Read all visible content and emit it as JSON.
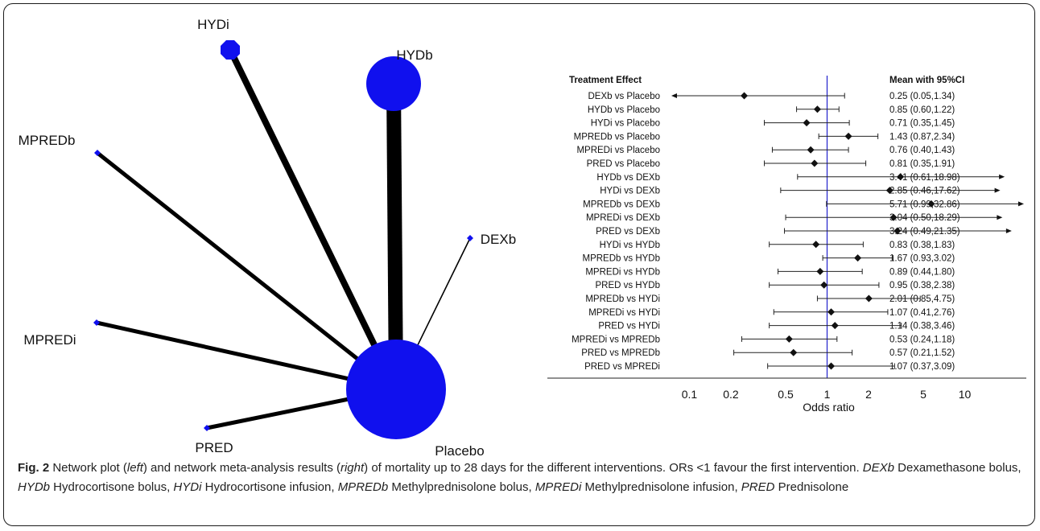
{
  "chart_data": [
    {
      "type": "network",
      "nodes": [
        {
          "id": "HYDi",
          "label": "HYDi",
          "size": "medium"
        },
        {
          "id": "HYDb",
          "label": "HYDb",
          "size": "large"
        },
        {
          "id": "MPREDb",
          "label": "MPREDb",
          "size": "small"
        },
        {
          "id": "DEXb",
          "label": "DEXb",
          "size": "small"
        },
        {
          "id": "MPREDi",
          "label": "MPREDi",
          "size": "small"
        },
        {
          "id": "PRED",
          "label": "PRED",
          "size": "small"
        },
        {
          "id": "Placebo",
          "label": "Placebo",
          "size": "very large"
        }
      ],
      "edges": [
        {
          "from": "HYDi",
          "to": "Placebo",
          "weight": "thick"
        },
        {
          "from": "HYDb",
          "to": "Placebo",
          "weight": "very thick"
        },
        {
          "from": "MPREDb",
          "to": "Placebo",
          "weight": "medium"
        },
        {
          "from": "DEXb",
          "to": "Placebo",
          "weight": "thin"
        },
        {
          "from": "MPREDi",
          "to": "Placebo",
          "weight": "medium"
        },
        {
          "from": "PRED",
          "to": "Placebo",
          "weight": "medium"
        }
      ]
    },
    {
      "type": "forest",
      "col_left_header": "Treatment Effect",
      "col_right_header": "Mean with 95%CI",
      "xlabel": "Odds ratio",
      "xscale": "log",
      "xlim": [
        0.07,
        28
      ],
      "reference_line": 1,
      "ticks": [
        {
          "value": 0.1,
          "label": "0.1"
        },
        {
          "value": 0.2,
          "label": "0.2"
        },
        {
          "value": 0.5,
          "label": "0.5"
        },
        {
          "value": 1,
          "label": "1"
        },
        {
          "value": 2,
          "label": "2"
        },
        {
          "value": 5,
          "label": "5"
        },
        {
          "value": 10,
          "label": "10"
        }
      ],
      "rows": [
        {
          "label": "DEXb vs Placebo",
          "mean": 0.25,
          "lo": 0.05,
          "hi": 1.34,
          "text": "0.25 (0.05,1.34)",
          "left_arrow": true,
          "right_arrow": false
        },
        {
          "label": "HYDb vs Placebo",
          "mean": 0.85,
          "lo": 0.6,
          "hi": 1.22,
          "text": "0.85 (0.60,1.22)",
          "left_arrow": false,
          "right_arrow": false
        },
        {
          "label": "HYDi vs Placebo",
          "mean": 0.71,
          "lo": 0.35,
          "hi": 1.45,
          "text": "0.71 (0.35,1.45)",
          "left_arrow": false,
          "right_arrow": false
        },
        {
          "label": "MPREDb vs Placebo",
          "mean": 1.43,
          "lo": 0.87,
          "hi": 2.34,
          "text": "1.43 (0.87,2.34)",
          "left_arrow": false,
          "right_arrow": false
        },
        {
          "label": "MPREDi vs Placebo",
          "mean": 0.76,
          "lo": 0.4,
          "hi": 1.43,
          "text": "0.76 (0.40,1.43)",
          "left_arrow": false,
          "right_arrow": false
        },
        {
          "label": "PRED vs Placebo",
          "mean": 0.81,
          "lo": 0.35,
          "hi": 1.91,
          "text": "0.81 (0.35,1.91)",
          "left_arrow": false,
          "right_arrow": false
        },
        {
          "label": "HYDb vs DEXb",
          "mean": 3.41,
          "lo": 0.61,
          "hi": 18.98,
          "text": "3.41 (0.61,18.98)",
          "left_arrow": false,
          "right_arrow": true
        },
        {
          "label": "HYDi vs DEXb",
          "mean": 2.85,
          "lo": 0.46,
          "hi": 17.62,
          "text": "2.85 (0.46,17.62)",
          "left_arrow": false,
          "right_arrow": true
        },
        {
          "label": "MPREDb vs DEXb",
          "mean": 5.71,
          "lo": 0.99,
          "hi": 32.86,
          "text": "5.71 (0.99,32.86)",
          "left_arrow": false,
          "right_arrow": true
        },
        {
          "label": "MPREDi vs DEXb",
          "mean": 3.04,
          "lo": 0.5,
          "hi": 18.29,
          "text": "3.04 (0.50,18.29)",
          "left_arrow": false,
          "right_arrow": true
        },
        {
          "label": "PRED vs DEXb",
          "mean": 3.24,
          "lo": 0.49,
          "hi": 21.35,
          "text": "3.24 (0.49,21.35)",
          "left_arrow": false,
          "right_arrow": true
        },
        {
          "label": "HYDi vs HYDb",
          "mean": 0.83,
          "lo": 0.38,
          "hi": 1.83,
          "text": "0.83 (0.38,1.83)",
          "left_arrow": false,
          "right_arrow": false
        },
        {
          "label": "MPREDb vs HYDb",
          "mean": 1.67,
          "lo": 0.93,
          "hi": 3.02,
          "text": "1.67 (0.93,3.02)",
          "left_arrow": false,
          "right_arrow": false
        },
        {
          "label": "MPREDi vs HYDb",
          "mean": 0.89,
          "lo": 0.44,
          "hi": 1.8,
          "text": "0.89 (0.44,1.80)",
          "left_arrow": false,
          "right_arrow": false
        },
        {
          "label": "PRED vs HYDb",
          "mean": 0.95,
          "lo": 0.38,
          "hi": 2.38,
          "text": "0.95 (0.38,2.38)",
          "left_arrow": false,
          "right_arrow": false
        },
        {
          "label": "MPREDb vs HYDi",
          "mean": 2.01,
          "lo": 0.85,
          "hi": 4.75,
          "text": "2.01 (0.85,4.75)",
          "left_arrow": false,
          "right_arrow": false
        },
        {
          "label": "MPREDi vs HYDi",
          "mean": 1.07,
          "lo": 0.41,
          "hi": 2.76,
          "text": "1.07 (0.41,2.76)",
          "left_arrow": false,
          "right_arrow": false
        },
        {
          "label": "PRED vs HYDi",
          "mean": 1.14,
          "lo": 0.38,
          "hi": 3.46,
          "text": "1.14 (0.38,3.46)",
          "left_arrow": false,
          "right_arrow": false
        },
        {
          "label": "MPREDi vs MPREDb",
          "mean": 0.53,
          "lo": 0.24,
          "hi": 1.18,
          "text": "0.53 (0.24,1.18)",
          "left_arrow": false,
          "right_arrow": false
        },
        {
          "label": "PRED vs MPREDb",
          "mean": 0.57,
          "lo": 0.21,
          "hi": 1.52,
          "text": "0.57 (0.21,1.52)",
          "left_arrow": false,
          "right_arrow": false
        },
        {
          "label": "PRED vs MPREDi",
          "mean": 1.07,
          "lo": 0.37,
          "hi": 3.09,
          "text": "1.07 (0.37,3.09)",
          "left_arrow": false,
          "right_arrow": false
        }
      ]
    }
  ],
  "caption": {
    "fig_label": "Fig. 2",
    "segments": [
      {
        "text": " Network plot (",
        "italic": false
      },
      {
        "text": "left",
        "italic": true
      },
      {
        "text": ") and network meta-analysis results (",
        "italic": false
      },
      {
        "text": "right",
        "italic": true
      },
      {
        "text": ") of mortality up to 28 days for the different interventions. ORs <1 favour the first intervention. ",
        "italic": false
      },
      {
        "text": "DEXb",
        "italic": true
      },
      {
        "text": " Dexamethasone bolus, ",
        "italic": false
      },
      {
        "text": "HYDb",
        "italic": true
      },
      {
        "text": " Hydrocortisone bolus, ",
        "italic": false
      },
      {
        "text": "HYDi",
        "italic": true
      },
      {
        "text": " Hydrocortisone infusion, ",
        "italic": false
      },
      {
        "text": "MPREDb",
        "italic": true
      },
      {
        "text": " Methylprednisolone bolus, ",
        "italic": false
      },
      {
        "text": "MPREDi",
        "italic": true
      },
      {
        "text": " Methylprednisolone infusion, ",
        "italic": false
      },
      {
        "text": "PRED",
        "italic": true
      },
      {
        "text": " Prednisolone",
        "italic": false
      }
    ]
  },
  "colors": {
    "node": "#1010ee",
    "edge": "#000000",
    "reference_line": "#2222cc",
    "text": "#111111"
  }
}
